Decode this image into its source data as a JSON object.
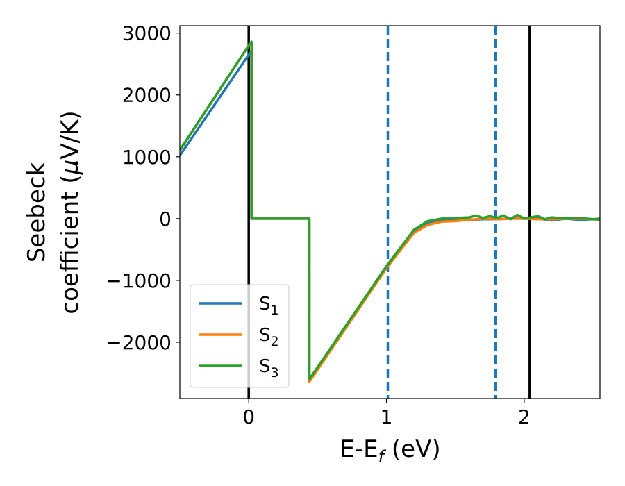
{
  "chart_data": {
    "type": "line",
    "xlabel": {
      "main": "E-E",
      "sub": "f",
      "unit": " (eV)"
    },
    "ylabel": {
      "line1": "Seebeck",
      "line2": "coefficient  (",
      "mu": "μ",
      "unit": "V/K)"
    },
    "xlim": [
      -0.5,
      2.55
    ],
    "ylim": [
      -2910,
      3120
    ],
    "xticks": [
      0,
      1,
      2
    ],
    "yticks": [
      -2000,
      -1000,
      0,
      1000,
      2000,
      3000
    ],
    "xtick_labels": [
      "0",
      "1",
      "2"
    ],
    "ytick_labels": [
      "−2000",
      "−1000",
      "0",
      "1000",
      "2000",
      "3000"
    ],
    "grid": false,
    "legend_position": "lower-left",
    "vlines": [
      {
        "x": 0.0,
        "style": "solid",
        "color": "#000000"
      },
      {
        "x": 1.01,
        "style": "dashed",
        "color": "#1f77b4"
      },
      {
        "x": 1.79,
        "style": "dashed",
        "color": "#1f77b4"
      },
      {
        "x": 2.04,
        "style": "solid",
        "color": "#000000"
      }
    ],
    "series": [
      {
        "base": "S",
        "sub": "1",
        "color": "#1f77b4",
        "points": [
          [
            -0.5,
            1020
          ],
          [
            0.0,
            2650
          ],
          [
            0.02,
            2700
          ],
          [
            0.02,
            0
          ],
          [
            0.44,
            0
          ],
          [
            0.44,
            -2610
          ],
          [
            1.0,
            -800
          ],
          [
            1.2,
            -200
          ],
          [
            1.3,
            -80
          ],
          [
            1.4,
            -30
          ],
          [
            1.5,
            -20
          ],
          [
            1.6,
            -20
          ],
          [
            1.7,
            -10
          ],
          [
            1.8,
            -10
          ],
          [
            1.9,
            0
          ],
          [
            2.0,
            0
          ],
          [
            2.1,
            0
          ],
          [
            2.2,
            -30
          ],
          [
            2.3,
            0
          ],
          [
            2.4,
            -20
          ],
          [
            2.5,
            -10
          ],
          [
            2.55,
            -20
          ]
        ]
      },
      {
        "base": "S",
        "sub": "2",
        "color": "#ff7f0e",
        "points": [
          [
            -0.5,
            1100
          ],
          [
            0.0,
            2800
          ],
          [
            0.02,
            2850
          ],
          [
            0.02,
            0
          ],
          [
            0.44,
            0
          ],
          [
            0.44,
            -2640
          ],
          [
            1.0,
            -800
          ],
          [
            1.2,
            -230
          ],
          [
            1.3,
            -100
          ],
          [
            1.4,
            -50
          ],
          [
            1.5,
            -40
          ],
          [
            1.6,
            -20
          ],
          [
            1.7,
            0
          ],
          [
            1.8,
            -10
          ],
          [
            1.9,
            0
          ],
          [
            2.0,
            0
          ],
          [
            2.1,
            -10
          ],
          [
            2.2,
            -10
          ],
          [
            2.3,
            0
          ],
          [
            2.4,
            0
          ],
          [
            2.5,
            -10
          ],
          [
            2.55,
            -10
          ]
        ]
      },
      {
        "base": "S",
        "sub": "3",
        "color": "#2ca02c",
        "points": [
          [
            -0.5,
            1110
          ],
          [
            0.0,
            2800
          ],
          [
            0.02,
            2860
          ],
          [
            0.02,
            0
          ],
          [
            0.44,
            0
          ],
          [
            0.44,
            -2600
          ],
          [
            1.0,
            -770
          ],
          [
            1.2,
            -180
          ],
          [
            1.3,
            -40
          ],
          [
            1.4,
            0
          ],
          [
            1.5,
            10
          ],
          [
            1.6,
            20
          ],
          [
            1.65,
            50
          ],
          [
            1.7,
            10
          ],
          [
            1.75,
            40
          ],
          [
            1.8,
            10
          ],
          [
            1.85,
            50
          ],
          [
            1.9,
            -10
          ],
          [
            1.95,
            60
          ],
          [
            2.0,
            0
          ],
          [
            2.1,
            40
          ],
          [
            2.15,
            -10
          ],
          [
            2.2,
            20
          ],
          [
            2.3,
            0
          ],
          [
            2.4,
            10
          ],
          [
            2.5,
            -10
          ],
          [
            2.55,
            0
          ]
        ]
      }
    ]
  }
}
